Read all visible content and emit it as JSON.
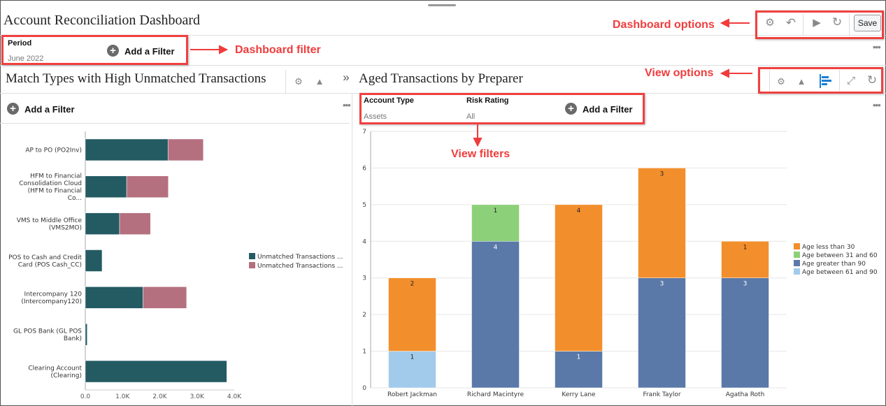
{
  "header": {
    "title": "Account Reconciliation Dashboard",
    "save_label": "Save",
    "icons": [
      "gears-icon",
      "undo-icon",
      "run-icon",
      "refresh-icon"
    ]
  },
  "dashboard_filter": {
    "label": "Period",
    "value": "June 2022",
    "add_filter": "Add a Filter"
  },
  "left_view": {
    "title": "Match Types with High Unmatched Transactions",
    "add_filter": "Add a Filter"
  },
  "right_view": {
    "title": "Aged Transactions by Preparer",
    "add_filter": "Add a Filter",
    "filters": [
      {
        "label": "Account Type",
        "value": "Assets"
      },
      {
        "label": "Risk Rating",
        "value": "All"
      }
    ],
    "icons": [
      "gears-icon",
      "shapes-icon",
      "bar-chart-icon",
      "expand-icon",
      "refresh-icon"
    ]
  },
  "annotations": {
    "dashboard_options": "Dashboard options",
    "dashboard_filter": "Dashboard filter",
    "view_options": "View options",
    "view_filters": "View filters"
  },
  "chart_data": [
    {
      "type": "bar",
      "orientation": "horizontal",
      "stacked": true,
      "categories": [
        "AP to PO (PO2Inv)",
        "HFM to Financial Consolidation Cloud (HFM to Financial Co...",
        "VMS to Middle Office (VMS2MO)",
        "POS to Cash and Credit Card (POS Cash_CC)",
        "Intercompany 120 (Intercompany120)",
        "GL POS Bank (GL POS Bank)",
        "Clearing Account (Clearing)"
      ],
      "series": [
        {
          "name": "Unmatched Transactions ...",
          "color": "#245b63",
          "values": [
            2220,
            1110,
            920,
            450,
            1550,
            50,
            3800
          ]
        },
        {
          "name": "Unmatched Transactions ...",
          "color": "#b5707f",
          "values": [
            950,
            1120,
            830,
            0,
            1170,
            0,
            0
          ]
        }
      ],
      "xlim": [
        0,
        4000
      ],
      "xticks": [
        "0.0",
        "1.0K",
        "2.0K",
        "3.0K",
        "4.0K"
      ],
      "legend": "right"
    },
    {
      "type": "bar",
      "stacked": true,
      "categories": [
        "Robert Jackman",
        "Richard Macintyre",
        "Kerry Lane",
        "Frank Taylor",
        "Agatha Roth"
      ],
      "series": [
        {
          "name": "Age between 61 and 90",
          "color": "#a2cbeb",
          "values": [
            1,
            0,
            0,
            0,
            0
          ]
        },
        {
          "name": "Age greater than 90",
          "color": "#5a79a8",
          "values": [
            0,
            4,
            1,
            3,
            3
          ]
        },
        {
          "name": "Age between 31 and 60",
          "color": "#8dd07a",
          "values": [
            0,
            1,
            0,
            0,
            0
          ]
        },
        {
          "name": "Age less than 30",
          "color": "#f28f2c",
          "values": [
            2,
            0,
            4,
            3,
            1
          ]
        }
      ],
      "legend_order": [
        "Age less than 30",
        "Age between 31 and 60",
        "Age greater than 90",
        "Age between 61 and 90"
      ],
      "ylim": [
        0,
        7
      ],
      "yticks": [
        "0",
        "1",
        "2",
        "3",
        "4",
        "5",
        "6",
        "7"
      ],
      "grid": true,
      "legend": "right"
    }
  ]
}
